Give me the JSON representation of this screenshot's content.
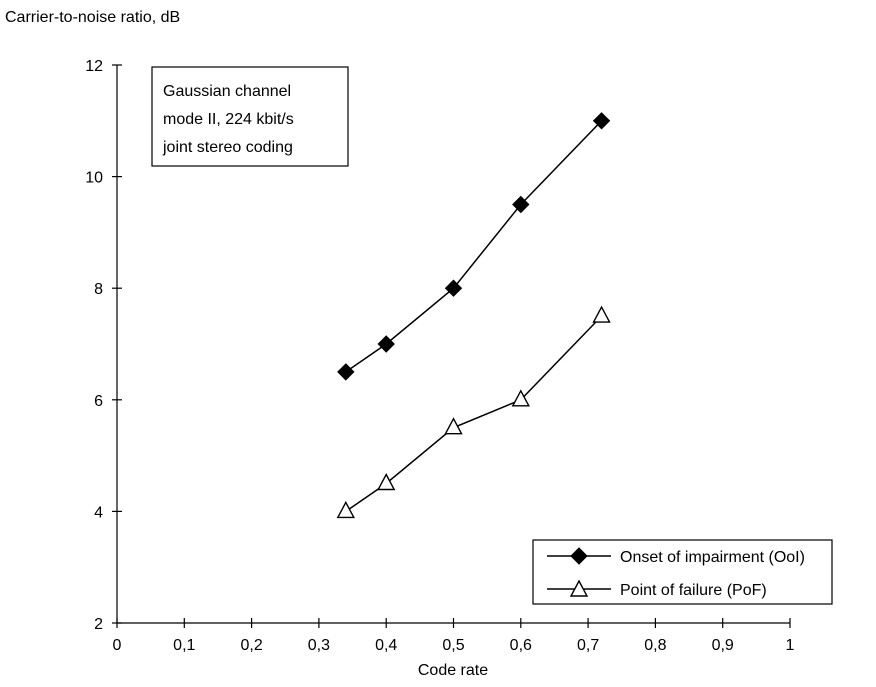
{
  "chart_data": {
    "type": "line",
    "title": "",
    "ylabel": "Carrier-to-noise ratio, dB",
    "xlabel": "Code rate",
    "xlim": [
      0,
      1
    ],
    "ylim": [
      2,
      12
    ],
    "xticks": [
      0,
      0.1,
      0.2,
      0.3,
      0.4,
      0.5,
      0.6,
      0.7,
      0.8,
      0.9,
      1
    ],
    "xtick_labels": [
      "0",
      "0,1",
      "0,2",
      "0,3",
      "0,4",
      "0,5",
      "0,6",
      "0,7",
      "0,8",
      "0,9",
      "1"
    ],
    "yticks": [
      2,
      4,
      6,
      8,
      10,
      12
    ],
    "ytick_labels": [
      "2",
      "4",
      "6",
      "8",
      "10",
      "12"
    ],
    "grid": false,
    "annotation": [
      "Gaussian channel",
      "mode II, 224 kbit/s",
      "joint stereo coding"
    ],
    "legend_position": "lower-right",
    "series": [
      {
        "name": "Onset of impairment (OoI)",
        "marker": "filled-diamond",
        "color": "#000000",
        "x": [
          0.34,
          0.4,
          0.5,
          0.6,
          0.72
        ],
        "y": [
          6.5,
          7.0,
          8.0,
          9.5,
          11.0
        ]
      },
      {
        "name": "Point of failure (PoF)",
        "marker": "open-triangle",
        "color": "#000000",
        "x": [
          0.34,
          0.4,
          0.5,
          0.6,
          0.72
        ],
        "y": [
          4.0,
          4.5,
          5.5,
          6.0,
          7.5
        ]
      }
    ]
  }
}
